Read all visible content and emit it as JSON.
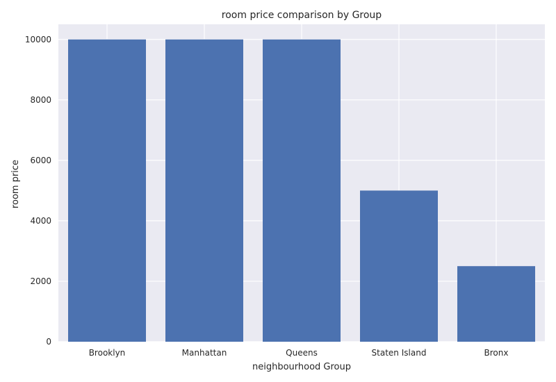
{
  "chart_data": {
    "type": "bar",
    "title": "room price comparison by Group",
    "xlabel": "neighbourhood Group",
    "ylabel": "room price",
    "categories": [
      "Brooklyn",
      "Manhattan",
      "Queens",
      "Staten Island",
      "Bronx"
    ],
    "values": [
      10000,
      10000,
      10000,
      5000,
      2500
    ],
    "ylim": [
      0,
      10500
    ],
    "yticks": [
      0,
      2000,
      4000,
      6000,
      8000,
      10000
    ],
    "grid": true,
    "bar_color": "#4c72b0",
    "plot_background": "#eaeaf2",
    "grid_color": "#ffffff"
  }
}
